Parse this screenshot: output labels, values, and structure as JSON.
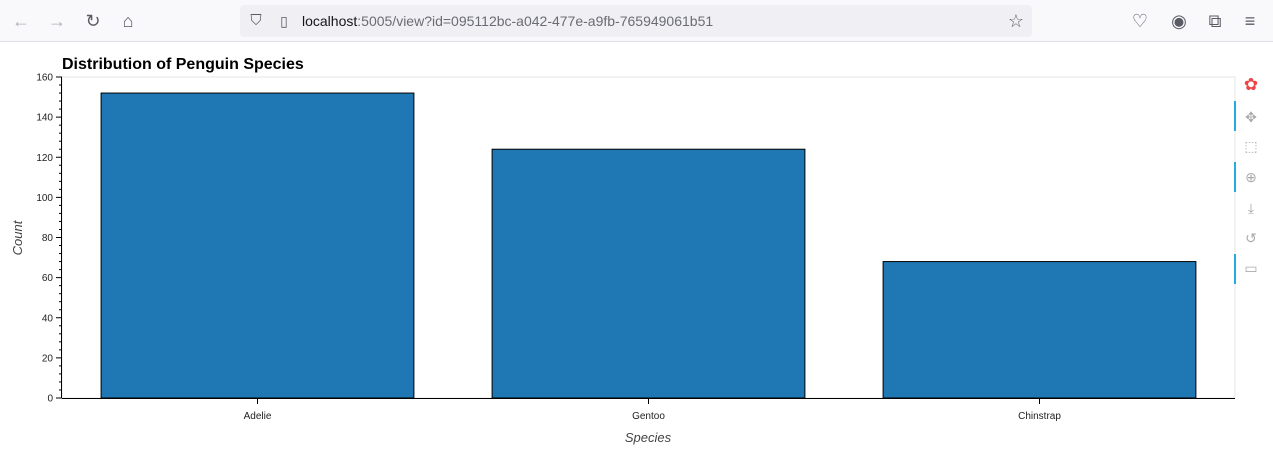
{
  "browser": {
    "url_host": "localhost",
    "url_rest": ":5005/view?id=095112bc-a042-477e-a9fb-765949061b51"
  },
  "toolbar": {
    "tools": [
      "bokeh-logo",
      "pan-icon",
      "box-zoom-icon",
      "wheel-zoom-icon",
      "save-icon",
      "reset-icon",
      "hover-icon"
    ]
  },
  "chart_data": {
    "type": "bar",
    "title": "Distribution of Penguin Species",
    "xlabel": "Species",
    "ylabel": "Count",
    "categories": [
      "Adelie",
      "Gentoo",
      "Chinstrap"
    ],
    "values": [
      152,
      124,
      68
    ],
    "ylim": [
      0,
      160
    ],
    "yticks": [
      0,
      20,
      40,
      60,
      80,
      100,
      120,
      140,
      160
    ],
    "bar_color": "#1f77b4",
    "grid": false,
    "legend": "none"
  }
}
